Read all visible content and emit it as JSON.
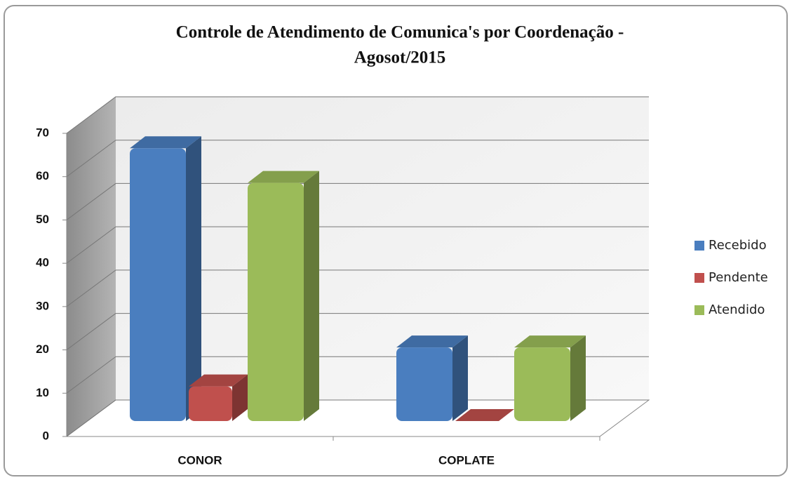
{
  "chart_data": {
    "type": "bar3d",
    "title": [
      "Controle de Atendimento de Comunica's por Coordenação -",
      "Agosot/2015"
    ],
    "categories": [
      "CONOR",
      "COPLATE"
    ],
    "series": [
      {
        "name": "Recebido",
        "color": "#4a7ebf",
        "values": [
          63,
          17
        ]
      },
      {
        "name": "Pendente",
        "color": "#c0504d",
        "values": [
          8,
          0
        ]
      },
      {
        "name": "Atendido",
        "color": "#9bbb59",
        "values": [
          55,
          17
        ]
      }
    ],
    "ylim": [
      0,
      70
    ],
    "yticks": [
      0,
      10,
      20,
      30,
      40,
      50,
      60,
      70
    ],
    "grid": true,
    "legend": "right"
  }
}
